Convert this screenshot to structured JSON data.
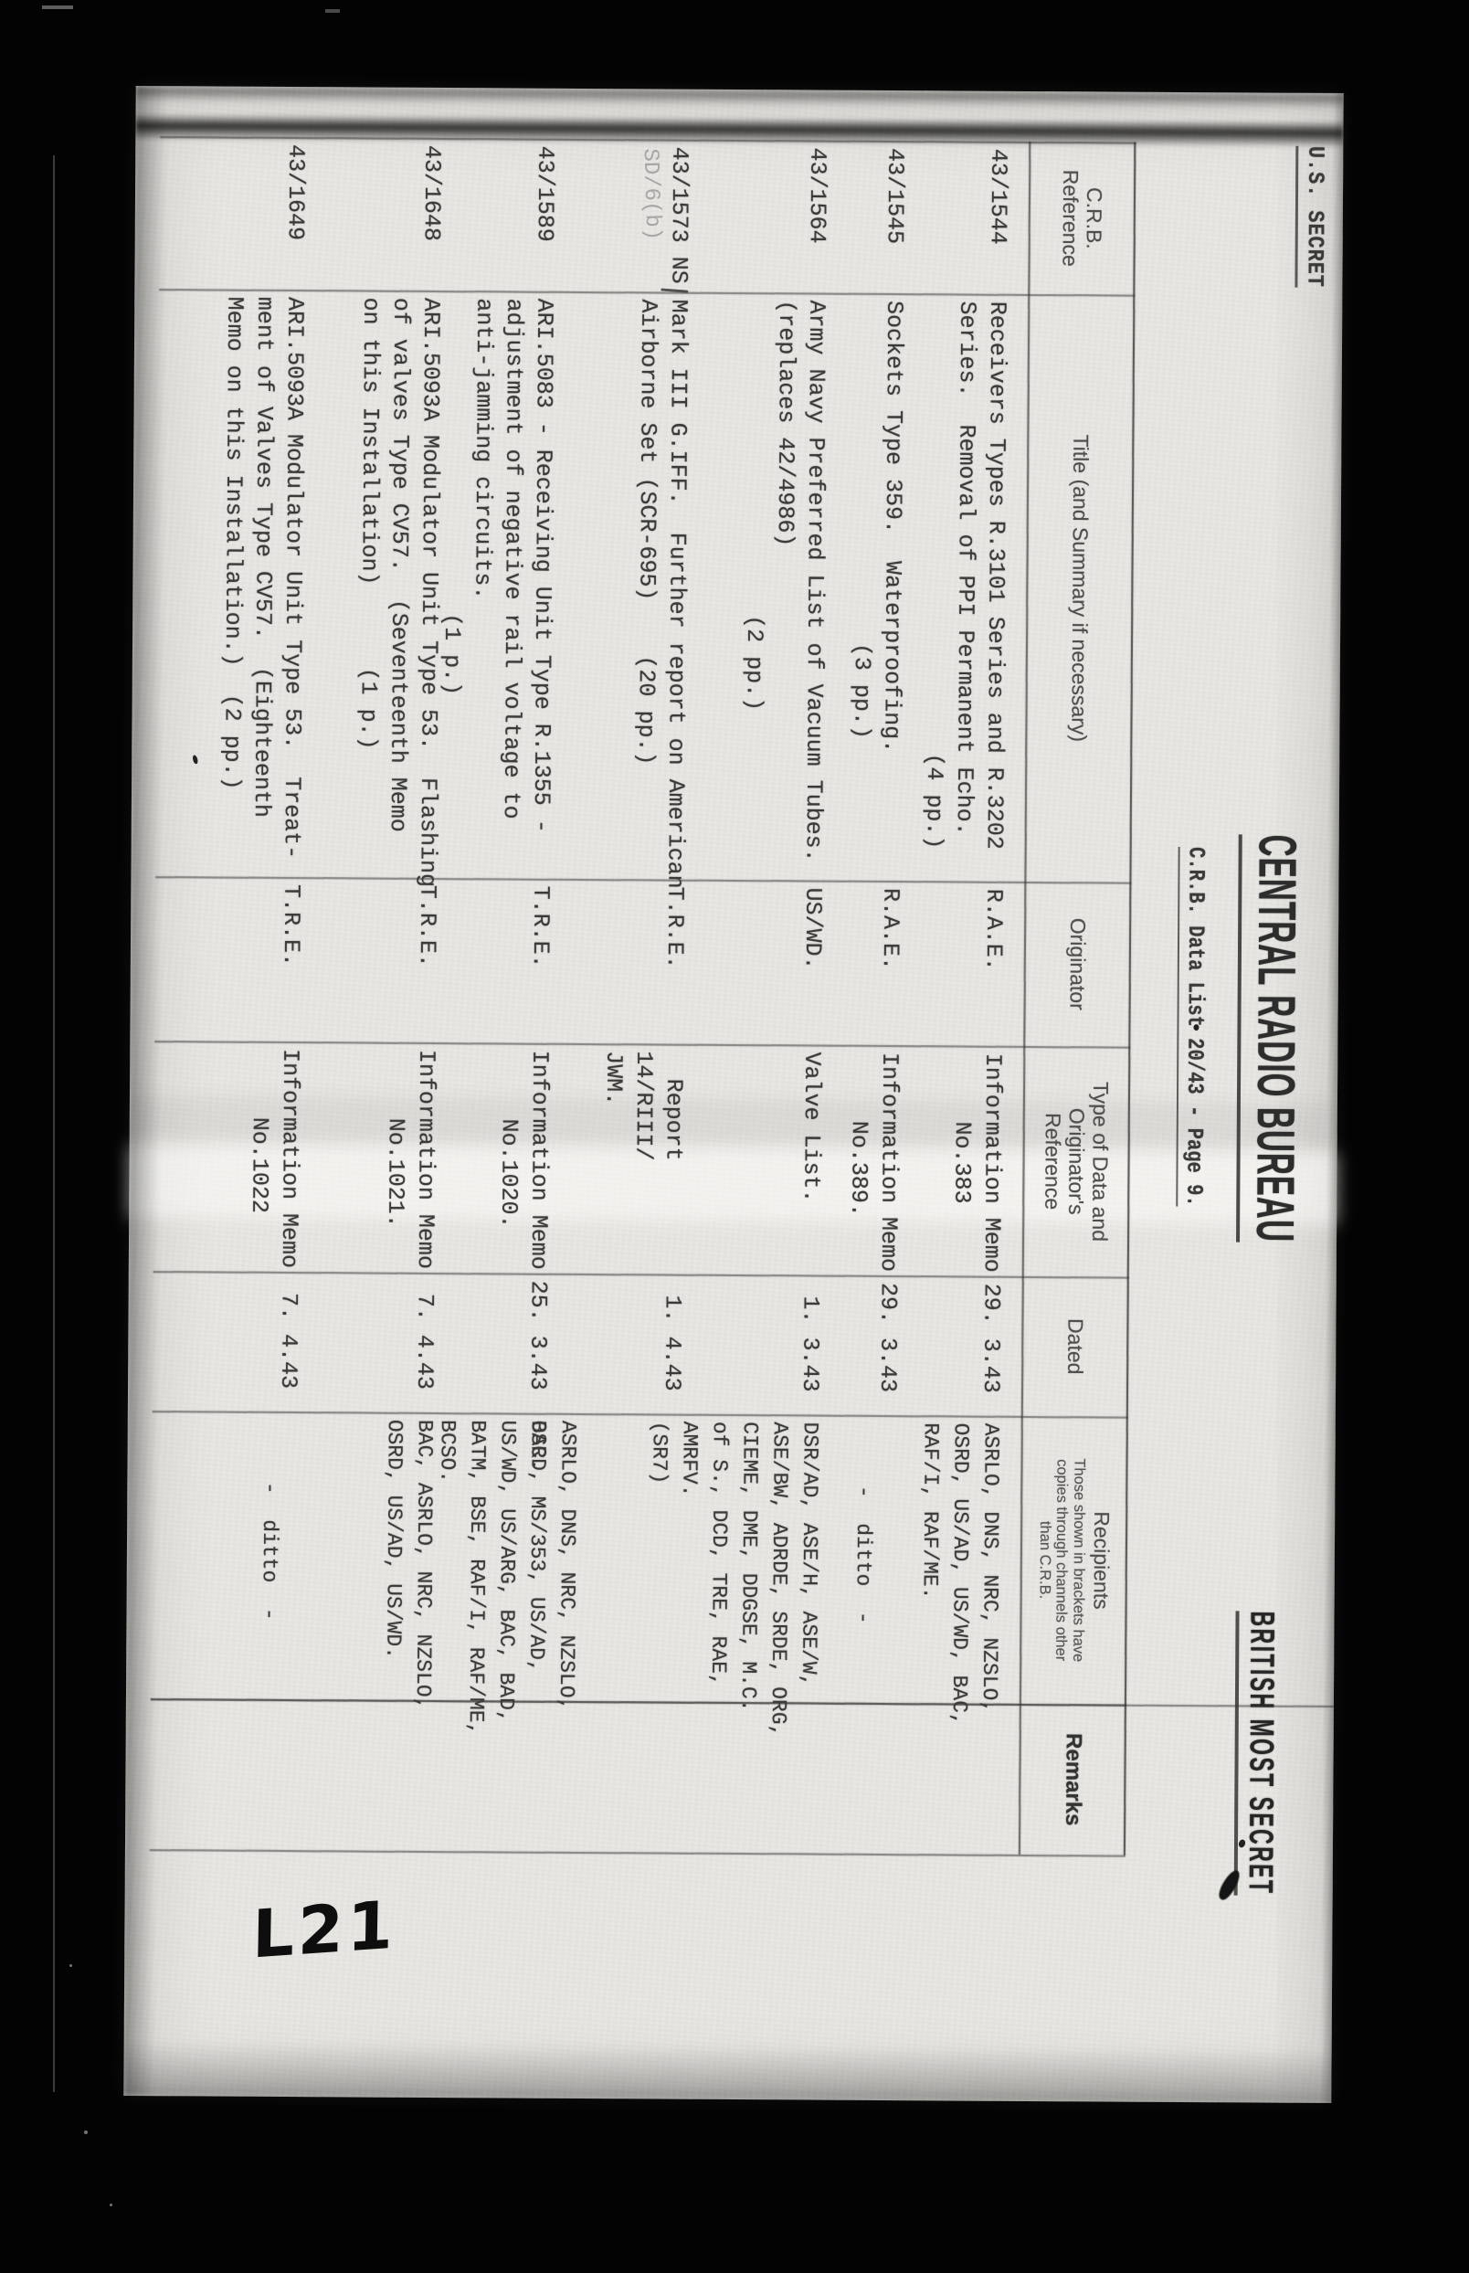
{
  "page": {
    "classification_left": "U.S. SECRET",
    "classification_right": "BRITISH MOST SECRET",
    "title": "CENTRAL RADIO BUREAU",
    "subtitle": "C.R.B. Data List 20/43 - Page 9.",
    "annotation": "L21"
  },
  "table": {
    "columns": [
      {
        "id": "ref",
        "label": "C.R.B.\nReference"
      },
      {
        "id": "title",
        "label": "Title (and Summary if necessary)"
      },
      {
        "id": "originator",
        "label": "Originator"
      },
      {
        "id": "type",
        "label": "Type of Data and\nOriginator's\nReference"
      },
      {
        "id": "dated",
        "label": "Dated"
      },
      {
        "id": "recipients",
        "label": "Recipients",
        "sublabel": "Those shown in brackets have\ncopies through channels other\nthan C.R.B."
      },
      {
        "id": "remarks",
        "label": "Remarks"
      }
    ],
    "rows": [
      {
        "ref": "43/1544",
        "title": "Receivers Types R.3101 Series and R.3202\nSeries.  Removal of PPI Permanent Echo.\n                                 (4 pp.)",
        "originator": "R.A.E.",
        "type": "Information Memo\n     No.383",
        "dated": "29. 3.43",
        "recipients": "ASRLO, DNS, NRC, NZSLO,\nOSRD, US/AD, US/WD, BAC,\nRAF/I, RAF/ME.",
        "remarks": ""
      },
      {
        "ref": "43/1545",
        "title": "Sockets Type 359.  Waterproofing.\n                         (3 pp.)",
        "originator": "R.A.E.",
        "type": "Information Memo\n     No.389.",
        "dated": "29. 3.43",
        "recipients": "     -  ditto  -",
        "remarks": ""
      },
      {
        "ref": "43/1564",
        "title": "Army Navy Preferred List of Vacuum Tubes.\n(replaces 42/4986)\n                       (2 pp.)",
        "originator": "US/WD.",
        "type": "Valve List.",
        "dated": " 1. 3.43",
        "recipients": "DSR/AD, ASE/H, ASE/W,\nASE/BW, ADRDE, SRDE, ORG,\nCIEME, DME, DDGSE, M.C.\nof S., DCD, TRE, RAE,\nAMRFV.\n(SR7)",
        "remarks": ""
      },
      {
        "ref": "43/1573 NS",
        "ref_note": "SD/6(b)",
        "title": "Mark III G.IFF.  Further report on American\nAirborne Set (SCR-695)    (20 pp.)",
        "originator": "T.R.E.",
        "type": "  Report\n14/RIII/\nJWM.",
        "dated": " 1. 4.43",
        "recipients": "ASRLO, DNS, NRC, NZSLO,\nOSRD, MS/353, US/AD,\nUS/WD, US/ARG, BAC, BAD,\nBATM, BSE, RAF/I, RAF/ME,\nBCSO.",
        "remarks": ""
      },
      {
        "ref": "43/1589",
        "title": "ARI.5083 - Receiving Unit Type R.1355 -\nadjustment of negative rail voltage to\nanti-jamming circuits.\n                       (1 p.)",
        "originator": "T.R.E.",
        "type": "Information Memo\n     No.1020.",
        "dated": "25. 3.43",
        "recipients": "BAC.",
        "remarks": ""
      },
      {
        "ref": "43/1648",
        "title": "ARI.5093A Modulator Unit Type 53.  Flashing\nof valves Type CV57.  (Seventeenth Memo\non this Installation)      (1 p.)",
        "originator": "T.R.E.",
        "type": "Information Memo\n     No.1021.",
        "dated": " 7. 4.43",
        "recipients": "BAC, ASRLO, NRC, NZSLO,\nOSRD, US/AD, US/WD.",
        "remarks": ""
      },
      {
        "ref": "43/1649",
        "title": "ARI.5093A Modulator Unit Type 53.  Treat-\nment of Valves Type CV57.  (Eighteenth\nMemo on this Installation.)  (2 pp.)",
        "originator": "T.R.E.",
        "type": "Information Memo\n     No.1022",
        "dated": " 7. 4.43",
        "recipients": "     -  ditto  -",
        "remarks": ""
      }
    ]
  }
}
